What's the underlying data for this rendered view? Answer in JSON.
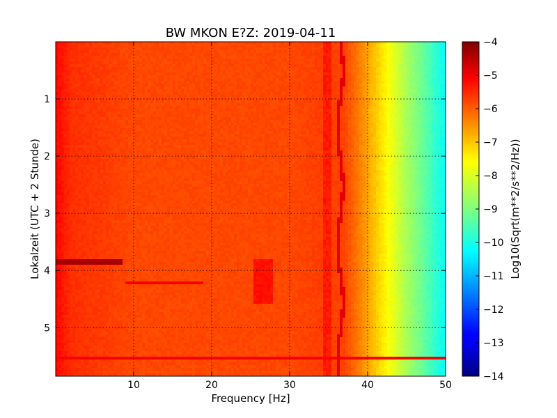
{
  "chart_data": {
    "type": "heatmap",
    "title": "BW MKON E?Z: 2019-04-11",
    "xlabel": "Frequency [Hz]",
    "ylabel": "Lokalzeit (UTC + 2 Stunde)",
    "xlim": [
      0,
      50
    ],
    "ylim": [
      5.85,
      0
    ],
    "x_ticks": [
      10,
      20,
      30,
      40,
      50
    ],
    "y_ticks": [
      1,
      2,
      3,
      4,
      5
    ],
    "grid": true,
    "colorbar": {
      "label": "Log10(Sqrt(m**2/s**2/Hz))",
      "range": [
        -14,
        -4
      ],
      "ticks": [
        -4,
        -5,
        -6,
        -7,
        -8,
        -9,
        -10,
        -11,
        -12,
        -13,
        -14
      ],
      "colormap": "jet"
    },
    "spectral_profile": {
      "description_frequency_hz": [
        0,
        2,
        10,
        20,
        30,
        34,
        37,
        39,
        41,
        43,
        45,
        47,
        49,
        50
      ],
      "log10_amplitude": [
        -5.3,
        -5.7,
        -5.95,
        -5.95,
        -5.95,
        -5.85,
        -5.9,
        -6.5,
        -7.2,
        -7.9,
        -8.6,
        -9.2,
        -9.9,
        -10.2
      ]
    },
    "features": [
      {
        "kind": "horizontal_line",
        "time_h": 3.85,
        "f_start": 0,
        "f_end": 8.5,
        "log10_amplitude": -4.4
      },
      {
        "kind": "horizontal_line",
        "time_h": 5.55,
        "f_start": 0,
        "f_end": 50,
        "log10_amplitude": -5.2
      },
      {
        "kind": "horizontal_line",
        "time_h": 4.22,
        "f_start": 9,
        "f_end": 19,
        "log10_amplitude": -5.2
      },
      {
        "kind": "vertical_line",
        "freq_hz": 36.5,
        "t_start": 0,
        "t_end": 5.85,
        "log10_amplitude": -5.0
      },
      {
        "kind": "vertical_band",
        "freq_hz": 34.8,
        "t_start": 0,
        "t_end": 5.85,
        "log10_amplitude": -5.5
      },
      {
        "kind": "blob",
        "freq_hz": 26.5,
        "t_start": 3.8,
        "t_end": 4.6,
        "log10_amplitude": -5.4
      }
    ]
  }
}
